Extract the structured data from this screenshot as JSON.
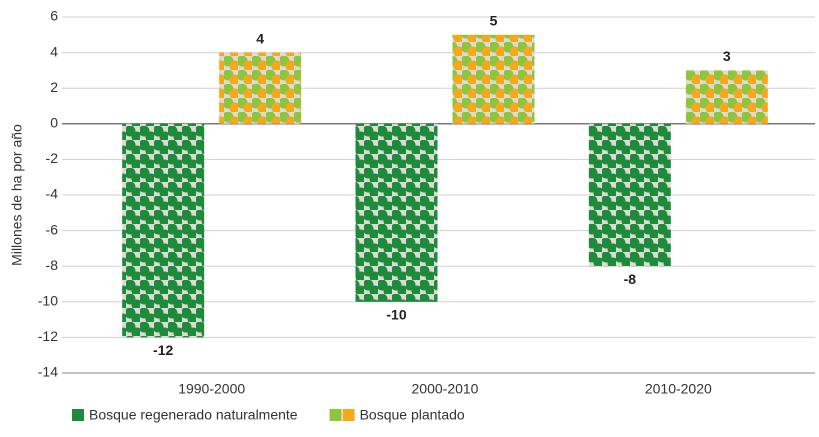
{
  "chart_data": {
    "type": "bar",
    "y_label": "Millones de ha por año",
    "categories": [
      "1990-2000",
      "2000-2010",
      "2010-2020"
    ],
    "series": [
      {
        "name": "Bosque regenerado naturalmente",
        "color": "#1e8b3a",
        "values": [
          -12,
          -10,
          -8
        ]
      },
      {
        "name": "Bosque plantado",
        "color": "#f5a81c",
        "colors": [
          "#8cc63e",
          "#f5a81c"
        ],
        "values": [
          4,
          5,
          3
        ]
      }
    ],
    "ylim": [
      -14,
      6
    ],
    "yticks": [
      -14,
      -12,
      -10,
      -8,
      -6,
      -4,
      -2,
      0,
      2,
      4,
      6
    ],
    "grid": true
  }
}
